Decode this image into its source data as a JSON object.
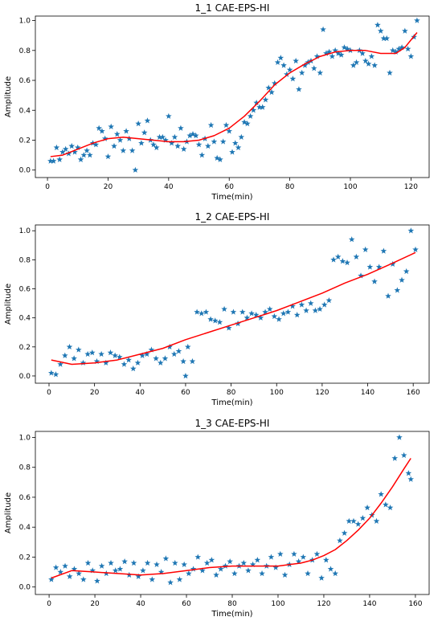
{
  "chart_data": [
    {
      "type": "scatter",
      "title": "1_1 CAE-EPS-HI",
      "xlabel": "Time(min)",
      "ylabel": "Amplitude",
      "xlim": [
        -4,
        126
      ],
      "ylim": [
        -0.05,
        1.03
      ],
      "xticks": [
        0,
        20,
        40,
        60,
        80,
        100,
        120
      ],
      "yticks": [
        0.0,
        0.2,
        0.4,
        0.6,
        0.8,
        1.0
      ],
      "grid": false,
      "legend": "none",
      "series": [
        {
          "kind": "scatter",
          "marker": "star",
          "color": "#1f77b4",
          "x": [
            1,
            2,
            3,
            4,
            5,
            6,
            7,
            8,
            9,
            10,
            11,
            12,
            13,
            14,
            15,
            16,
            17,
            18,
            19,
            20,
            21,
            22,
            23,
            24,
            25,
            26,
            27,
            28,
            29,
            30,
            31,
            32,
            33,
            34,
            35,
            36,
            37,
            38,
            39,
            40,
            41,
            42,
            43,
            44,
            45,
            46,
            47,
            48,
            49,
            50,
            51,
            52,
            53,
            54,
            55,
            56,
            57,
            58,
            59,
            60,
            61,
            62,
            63,
            64,
            65,
            66,
            67,
            68,
            69,
            70,
            71,
            72,
            73,
            74,
            75,
            76,
            77,
            78,
            79,
            80,
            81,
            82,
            83,
            84,
            85,
            86,
            87,
            88,
            89,
            90,
            91,
            92,
            93,
            94,
            95,
            96,
            97,
            98,
            99,
            100,
            101,
            102,
            103,
            104,
            105,
            106,
            107,
            108,
            109,
            110,
            111,
            112,
            113,
            114,
            115,
            116,
            117,
            118,
            119,
            120,
            121,
            122
          ],
          "y": [
            0.06,
            0.06,
            0.15,
            0.07,
            0.12,
            0.14,
            0.11,
            0.16,
            0.12,
            0.15,
            0.07,
            0.1,
            0.13,
            0.1,
            0.18,
            0.17,
            0.28,
            0.26,
            0.21,
            0.09,
            0.29,
            0.16,
            0.24,
            0.2,
            0.13,
            0.26,
            0.21,
            0.13,
            0.0,
            0.31,
            0.18,
            0.25,
            0.33,
            0.2,
            0.17,
            0.15,
            0.22,
            0.22,
            0.2,
            0.36,
            0.18,
            0.22,
            0.16,
            0.28,
            0.14,
            0.19,
            0.23,
            0.24,
            0.23,
            0.17,
            0.1,
            0.21,
            0.16,
            0.3,
            0.19,
            0.08,
            0.07,
            0.19,
            0.3,
            0.26,
            0.12,
            0.18,
            0.15,
            0.22,
            0.32,
            0.31,
            0.36,
            0.4,
            0.45,
            0.42,
            0.42,
            0.47,
            0.55,
            0.52,
            0.58,
            0.72,
            0.75,
            0.7,
            0.64,
            0.67,
            0.61,
            0.73,
            0.54,
            0.65,
            0.7,
            0.72,
            0.73,
            0.68,
            0.76,
            0.65,
            0.94,
            0.78,
            0.79,
            0.76,
            0.8,
            0.78,
            0.77,
            0.82,
            0.81,
            0.8,
            0.7,
            0.72,
            0.8,
            0.78,
            0.73,
            0.71,
            0.76,
            0.7,
            0.97,
            0.93,
            0.88,
            0.88,
            0.65,
            0.8,
            0.79,
            0.81,
            0.82,
            0.93,
            0.81,
            0.76,
            0.89,
            1.0
          ]
        },
        {
          "kind": "line",
          "color": "#ff0000",
          "x": [
            1,
            5,
            10,
            15,
            20,
            25,
            30,
            35,
            40,
            45,
            50,
            55,
            60,
            65,
            70,
            75,
            80,
            85,
            90,
            95,
            100,
            105,
            110,
            115,
            118,
            120,
            122
          ],
          "y": [
            0.09,
            0.1,
            0.14,
            0.18,
            0.21,
            0.22,
            0.21,
            0.2,
            0.19,
            0.19,
            0.2,
            0.23,
            0.28,
            0.36,
            0.46,
            0.57,
            0.65,
            0.71,
            0.76,
            0.79,
            0.8,
            0.8,
            0.78,
            0.78,
            0.82,
            0.87,
            0.92
          ]
        }
      ]
    },
    {
      "type": "scatter",
      "title": "1_2 CAE-EPS-HI",
      "xlabel": "Time(min)",
      "ylabel": "Amplitude",
      "xlim": [
        -6,
        167
      ],
      "ylim": [
        -0.05,
        1.04
      ],
      "xticks": [
        0,
        20,
        40,
        60,
        80,
        100,
        120,
        140,
        160
      ],
      "yticks": [
        0.0,
        0.2,
        0.4,
        0.6,
        0.8,
        1.0
      ],
      "grid": false,
      "legend": "none",
      "series": [
        {
          "kind": "scatter",
          "marker": "star",
          "color": "#1f77b4",
          "x": [
            1,
            3,
            5,
            7,
            9,
            11,
            13,
            15,
            17,
            19,
            21,
            23,
            25,
            27,
            29,
            31,
            33,
            35,
            37,
            39,
            41,
            43,
            45,
            47,
            49,
            51,
            53,
            55,
            57,
            59,
            60,
            61,
            63,
            65,
            67,
            69,
            71,
            73,
            75,
            77,
            79,
            81,
            83,
            85,
            87,
            89,
            91,
            93,
            95,
            97,
            99,
            101,
            103,
            105,
            107,
            109,
            111,
            113,
            115,
            117,
            119,
            121,
            123,
            125,
            127,
            129,
            131,
            133,
            135,
            137,
            139,
            141,
            143,
            145,
            147,
            149,
            151,
            153,
            155,
            157,
            159,
            161
          ],
          "y": [
            0.02,
            0.01,
            0.08,
            0.14,
            0.2,
            0.12,
            0.18,
            0.09,
            0.15,
            0.16,
            0.1,
            0.15,
            0.09,
            0.16,
            0.14,
            0.13,
            0.08,
            0.11,
            0.05,
            0.09,
            0.14,
            0.15,
            0.18,
            0.12,
            0.09,
            0.12,
            0.2,
            0.15,
            0.17,
            0.1,
            0.0,
            0.2,
            0.1,
            0.44,
            0.43,
            0.44,
            0.39,
            0.38,
            0.37,
            0.46,
            0.33,
            0.44,
            0.36,
            0.44,
            0.4,
            0.43,
            0.42,
            0.4,
            0.44,
            0.46,
            0.41,
            0.39,
            0.43,
            0.44,
            0.48,
            0.42,
            0.49,
            0.45,
            0.5,
            0.45,
            0.46,
            0.49,
            0.52,
            0.8,
            0.82,
            0.79,
            0.78,
            0.94,
            0.82,
            0.69,
            0.87,
            0.75,
            0.65,
            0.75,
            0.86,
            0.55,
            0.77,
            0.59,
            0.66,
            0.72,
            1.0,
            0.87
          ]
        },
        {
          "kind": "line",
          "color": "#ff0000",
          "x": [
            1,
            10,
            20,
            30,
            40,
            50,
            60,
            70,
            80,
            90,
            100,
            110,
            120,
            130,
            140,
            150,
            161
          ],
          "y": [
            0.11,
            0.08,
            0.09,
            0.11,
            0.15,
            0.19,
            0.25,
            0.3,
            0.35,
            0.4,
            0.45,
            0.51,
            0.57,
            0.64,
            0.7,
            0.77,
            0.85
          ]
        }
      ]
    },
    {
      "type": "scatter",
      "title": "1_3 CAE-EPS-HI",
      "xlabel": "Time(min)",
      "ylabel": "Amplitude",
      "xlim": [
        -6,
        166
      ],
      "ylim": [
        -0.05,
        1.04
      ],
      "xticks": [
        0,
        20,
        40,
        60,
        80,
        100,
        120,
        140,
        160
      ],
      "yticks": [
        0.0,
        0.2,
        0.4,
        0.6,
        0.8,
        1.0
      ],
      "grid": false,
      "legend": "none",
      "series": [
        {
          "kind": "scatter",
          "marker": "star",
          "color": "#1f77b4",
          "x": [
            1,
            3,
            5,
            7,
            9,
            11,
            13,
            15,
            17,
            19,
            21,
            23,
            25,
            27,
            29,
            31,
            33,
            35,
            37,
            39,
            41,
            43,
            45,
            47,
            49,
            51,
            53,
            55,
            57,
            59,
            61,
            63,
            65,
            67,
            69,
            71,
            73,
            75,
            77,
            79,
            81,
            83,
            85,
            87,
            89,
            91,
            93,
            95,
            97,
            99,
            101,
            103,
            105,
            107,
            109,
            111,
            113,
            115,
            117,
            119,
            121,
            123,
            125,
            127,
            129,
            131,
            133,
            135,
            137,
            139,
            141,
            143,
            145,
            147,
            149,
            151,
            153,
            155,
            157,
            158
          ],
          "y": [
            0.05,
            0.13,
            0.1,
            0.14,
            0.07,
            0.12,
            0.09,
            0.05,
            0.16,
            0.11,
            0.04,
            0.14,
            0.09,
            0.16,
            0.11,
            0.12,
            0.17,
            0.08,
            0.16,
            0.07,
            0.11,
            0.16,
            0.05,
            0.15,
            0.1,
            0.19,
            0.03,
            0.16,
            0.05,
            0.15,
            0.09,
            0.12,
            0.2,
            0.11,
            0.16,
            0.18,
            0.08,
            0.12,
            0.14,
            0.17,
            0.09,
            0.14,
            0.16,
            0.11,
            0.15,
            0.18,
            0.09,
            0.14,
            0.2,
            0.13,
            0.22,
            0.08,
            0.15,
            0.22,
            0.17,
            0.2,
            0.09,
            0.18,
            0.22,
            0.06,
            0.18,
            0.12,
            0.09,
            0.31,
            0.36,
            0.44,
            0.44,
            0.42,
            0.46,
            0.53,
            0.48,
            0.44,
            0.62,
            0.55,
            0.53,
            0.86,
            1.0,
            0.88,
            0.76,
            0.72
          ]
        },
        {
          "kind": "line",
          "color": "#ff0000",
          "x": [
            1,
            10,
            20,
            30,
            40,
            50,
            60,
            70,
            80,
            90,
            100,
            110,
            115,
            120,
            125,
            130,
            135,
            140,
            145,
            150,
            155,
            158
          ],
          "y": [
            0.06,
            0.11,
            0.1,
            0.09,
            0.08,
            0.09,
            0.11,
            0.13,
            0.14,
            0.14,
            0.14,
            0.16,
            0.18,
            0.21,
            0.25,
            0.31,
            0.38,
            0.46,
            0.56,
            0.67,
            0.79,
            0.86
          ]
        }
      ]
    }
  ]
}
